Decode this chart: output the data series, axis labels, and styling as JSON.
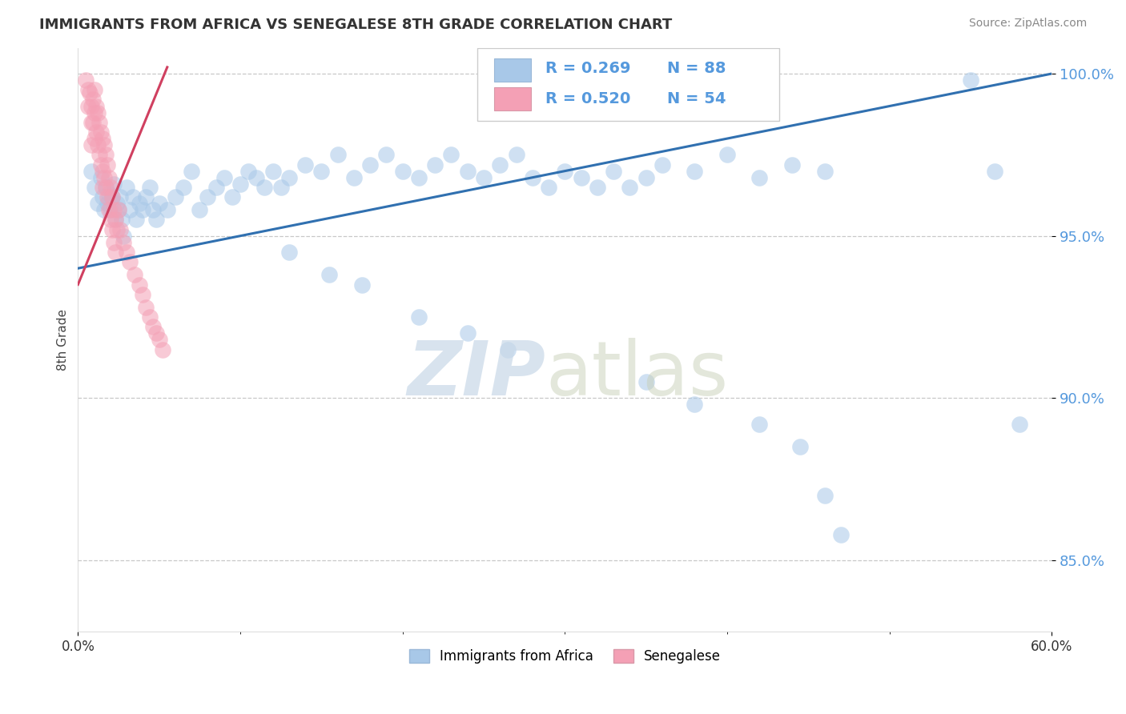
{
  "title": "IMMIGRANTS FROM AFRICA VS SENEGALESE 8TH GRADE CORRELATION CHART",
  "source": "Source: ZipAtlas.com",
  "ylabel": "8th Grade",
  "xmin": 0.0,
  "xmax": 0.6,
  "ymin": 0.828,
  "ymax": 1.008,
  "yticks": [
    0.85,
    0.9,
    0.95,
    1.0
  ],
  "ytick_labels": [
    "85.0%",
    "90.0%",
    "95.0%",
    "100.0%"
  ],
  "legend_label1": "Immigrants from Africa",
  "legend_label2": "Senegalese",
  "blue_color": "#a8c8e8",
  "pink_color": "#f4a0b5",
  "blue_line_color": "#3070b0",
  "pink_line_color": "#d04060",
  "blue_r": 0.269,
  "blue_n": 88,
  "pink_r": 0.52,
  "pink_n": 54,
  "blue_trend_x0": 0.0,
  "blue_trend_y0": 0.94,
  "blue_trend_x1": 0.6,
  "blue_trend_y1": 1.0,
  "pink_trend_x0": 0.0,
  "pink_trend_y0": 0.935,
  "pink_trend_x1": 0.055,
  "pink_trend_y1": 1.002,
  "blue_scatter_x": [
    0.008,
    0.01,
    0.012,
    0.014,
    0.015,
    0.016,
    0.017,
    0.018,
    0.019,
    0.02,
    0.021,
    0.022,
    0.023,
    0.024,
    0.025,
    0.026,
    0.027,
    0.028,
    0.03,
    0.032,
    0.034,
    0.036,
    0.038,
    0.04,
    0.042,
    0.044,
    0.046,
    0.048,
    0.05,
    0.055,
    0.06,
    0.065,
    0.07,
    0.075,
    0.08,
    0.085,
    0.09,
    0.095,
    0.1,
    0.105,
    0.11,
    0.115,
    0.12,
    0.125,
    0.13,
    0.14,
    0.15,
    0.16,
    0.17,
    0.18,
    0.19,
    0.2,
    0.21,
    0.22,
    0.23,
    0.24,
    0.25,
    0.26,
    0.27,
    0.28,
    0.29,
    0.3,
    0.31,
    0.32,
    0.33,
    0.34,
    0.35,
    0.36,
    0.38,
    0.4,
    0.42,
    0.44,
    0.46,
    0.13,
    0.155,
    0.175,
    0.21,
    0.24,
    0.265,
    0.35,
    0.38,
    0.42,
    0.445,
    0.46,
    0.47,
    0.55,
    0.565,
    0.58
  ],
  "blue_scatter_y": [
    0.97,
    0.965,
    0.96,
    0.968,
    0.962,
    0.958,
    0.965,
    0.96,
    0.963,
    0.958,
    0.962,
    0.966,
    0.955,
    0.96,
    0.958,
    0.962,
    0.955,
    0.95,
    0.965,
    0.958,
    0.962,
    0.955,
    0.96,
    0.958,
    0.962,
    0.965,
    0.958,
    0.955,
    0.96,
    0.958,
    0.962,
    0.965,
    0.97,
    0.958,
    0.962,
    0.965,
    0.968,
    0.962,
    0.966,
    0.97,
    0.968,
    0.965,
    0.97,
    0.965,
    0.968,
    0.972,
    0.97,
    0.975,
    0.968,
    0.972,
    0.975,
    0.97,
    0.968,
    0.972,
    0.975,
    0.97,
    0.968,
    0.972,
    0.975,
    0.968,
    0.965,
    0.97,
    0.968,
    0.965,
    0.97,
    0.965,
    0.968,
    0.972,
    0.97,
    0.975,
    0.968,
    0.972,
    0.97,
    0.945,
    0.938,
    0.935,
    0.925,
    0.92,
    0.915,
    0.905,
    0.898,
    0.892,
    0.885,
    0.87,
    0.858,
    0.998,
    0.97,
    0.892
  ],
  "pink_scatter_x": [
    0.005,
    0.006,
    0.006,
    0.007,
    0.008,
    0.008,
    0.008,
    0.009,
    0.009,
    0.01,
    0.01,
    0.01,
    0.011,
    0.011,
    0.012,
    0.012,
    0.013,
    0.013,
    0.014,
    0.014,
    0.015,
    0.015,
    0.015,
    0.016,
    0.016,
    0.017,
    0.017,
    0.018,
    0.018,
    0.019,
    0.019,
    0.02,
    0.02,
    0.021,
    0.021,
    0.022,
    0.022,
    0.023,
    0.023,
    0.024,
    0.025,
    0.026,
    0.028,
    0.03,
    0.032,
    0.035,
    0.038,
    0.04,
    0.042,
    0.044,
    0.046,
    0.048,
    0.05,
    0.052
  ],
  "pink_scatter_y": [
    0.998,
    0.995,
    0.99,
    0.994,
    0.99,
    0.985,
    0.978,
    0.992,
    0.985,
    0.995,
    0.988,
    0.98,
    0.99,
    0.982,
    0.988,
    0.978,
    0.985,
    0.975,
    0.982,
    0.972,
    0.98,
    0.97,
    0.965,
    0.978,
    0.968,
    0.975,
    0.965,
    0.972,
    0.962,
    0.968,
    0.958,
    0.965,
    0.955,
    0.962,
    0.952,
    0.958,
    0.948,
    0.955,
    0.945,
    0.952,
    0.958,
    0.952,
    0.948,
    0.945,
    0.942,
    0.938,
    0.935,
    0.932,
    0.928,
    0.925,
    0.922,
    0.92,
    0.918,
    0.915
  ]
}
